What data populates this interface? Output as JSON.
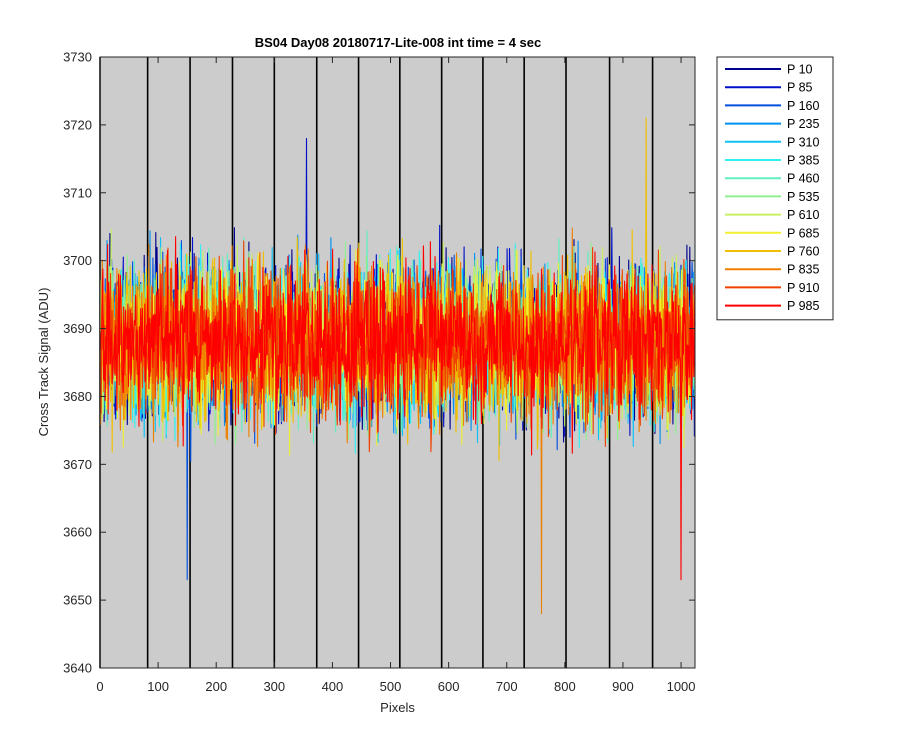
{
  "chart_data": {
    "type": "line",
    "title": "BS04 Day08 20180717-Lite-008 int time = 4 sec",
    "xlabel": "Pixels",
    "ylabel": "Cross Track Signal (ADU)",
    "xlim": [
      0,
      1024
    ],
    "ylim": [
      3640,
      3730
    ],
    "xticks": [
      0,
      100,
      200,
      300,
      400,
      500,
      600,
      700,
      800,
      900,
      1000
    ],
    "yticks": [
      3640,
      3650,
      3660,
      3670,
      3680,
      3690,
      3700,
      3710,
      3720,
      3730
    ],
    "background_color": "#cccccc",
    "vertical_markers": [
      0,
      82,
      155,
      228,
      300,
      373,
      445,
      516,
      588,
      659,
      730,
      802,
      877,
      951
    ],
    "noise_model": {
      "center": 3688,
      "spread": 7,
      "points_per_series": 1024
    },
    "legend_position": "outside-right",
    "series": [
      {
        "name": "P 10",
        "color": "#00008f",
        "seed": 10
      },
      {
        "name": "P 85",
        "color": "#0010c8",
        "seed": 85
      },
      {
        "name": "P 160",
        "color": "#0050e0",
        "seed": 160
      },
      {
        "name": "P 235",
        "color": "#0090f0",
        "seed": 235
      },
      {
        "name": "P 310",
        "color": "#10c0f8",
        "seed": 310
      },
      {
        "name": "P 385",
        "color": "#30f0f0",
        "seed": 385
      },
      {
        "name": "P 460",
        "color": "#60f0c0",
        "seed": 460
      },
      {
        "name": "P 535",
        "color": "#90f090",
        "seed": 535
      },
      {
        "name": "P 610",
        "color": "#c8f060",
        "seed": 610
      },
      {
        "name": "P 685",
        "color": "#f0f030",
        "seed": 685
      },
      {
        "name": "P 760",
        "color": "#f0c000",
        "seed": 760
      },
      {
        "name": "P 835",
        "color": "#f08000",
        "seed": 835
      },
      {
        "name": "P 910",
        "color": "#f04000",
        "seed": 910
      },
      {
        "name": "P 985",
        "color": "#ff0000",
        "seed": 985
      }
    ],
    "notable_points": [
      {
        "series": "P 835",
        "x": 760,
        "y": 3648
      },
      {
        "series": "P 160",
        "x": 150,
        "y": 3653
      },
      {
        "series": "P 985",
        "x": 1000,
        "y": 3653
      },
      {
        "series": "P 760",
        "x": 940,
        "y": 3721
      },
      {
        "series": "P 85",
        "x": 355,
        "y": 3718
      }
    ]
  }
}
